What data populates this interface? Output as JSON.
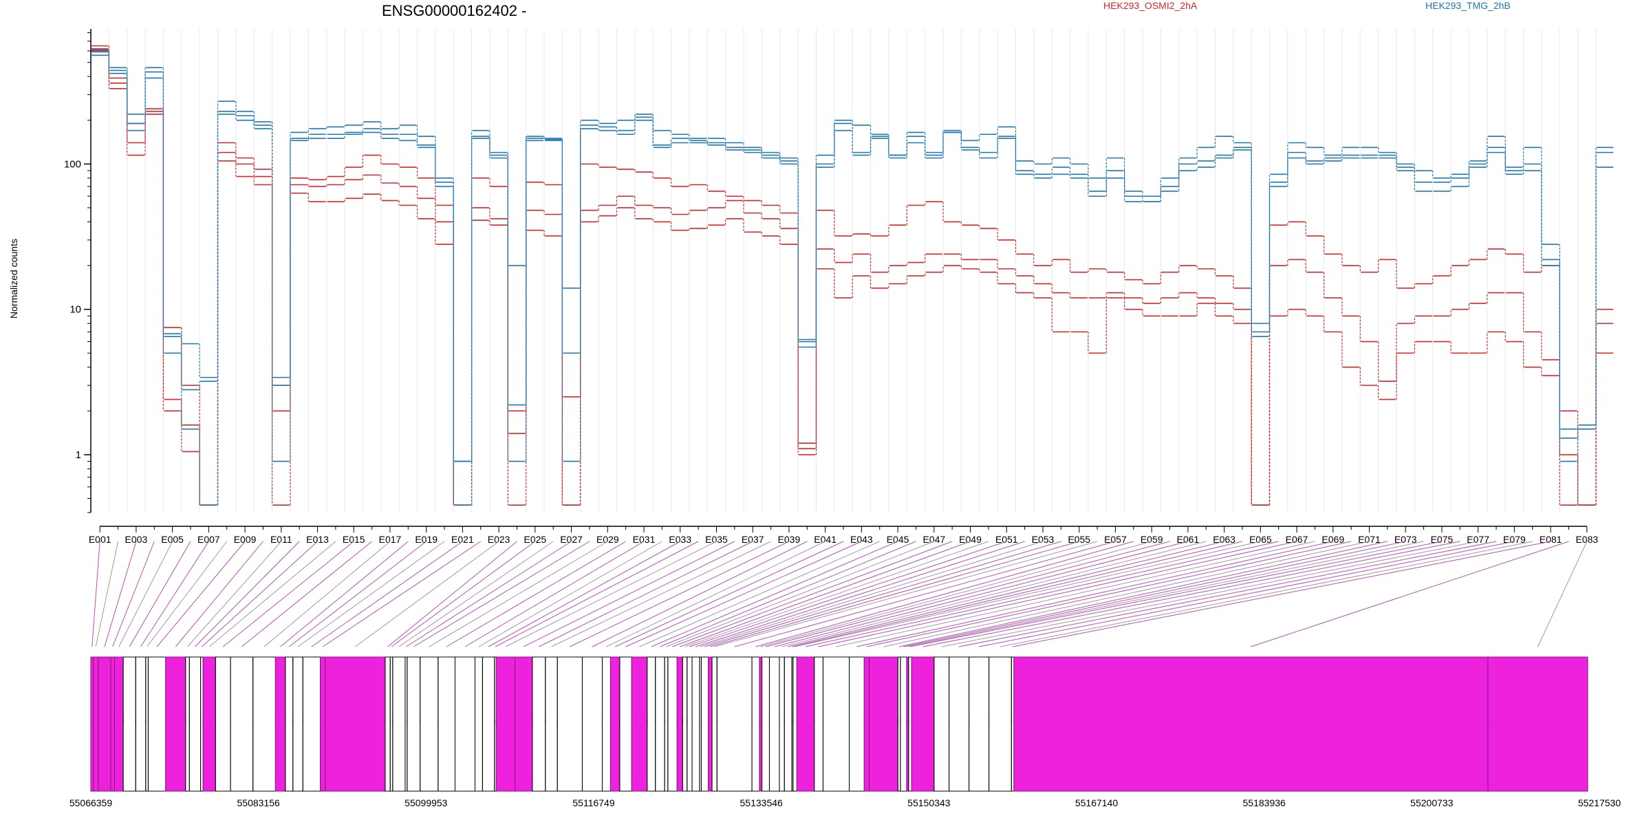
{
  "title": "ENSG00000162402 -",
  "ylabel": "Normalized counts",
  "legend": [
    {
      "name": "HEK293_OSMI2_2hA",
      "color": "#d62728"
    },
    {
      "name": "HEK293_TMG_2hB",
      "color": "#1f77b4"
    }
  ],
  "highlight_color": "#ee22dd",
  "chart_data": {
    "type": "line",
    "yscale": "log",
    "ylim": [
      0.4,
      850
    ],
    "yticks": [
      1,
      10,
      100
    ],
    "ytick_labels": [
      "1",
      "10",
      "100"
    ],
    "x_labels": [
      "E001",
      "E003",
      "E005",
      "E007",
      "E009",
      "E011",
      "E013",
      "E015",
      "E017",
      "E019",
      "E021",
      "E023",
      "E025",
      "E027",
      "E029",
      "E031",
      "E033",
      "E035",
      "E037",
      "E039",
      "E041",
      "E043",
      "E045",
      "E047",
      "E049",
      "E051",
      "E053",
      "E055",
      "E057",
      "E059",
      "E061",
      "E063",
      "E065",
      "E067",
      "E069",
      "E071",
      "E073",
      "E075",
      "E077",
      "E079",
      "E081",
      "E083"
    ],
    "exon_count": 83,
    "series": [
      {
        "group": "red",
        "values": [
          650,
          330,
          115,
          230,
          2.0,
          1.05,
          0.45,
          105,
          82,
          72,
          0.45,
          63,
          55,
          55,
          58,
          62,
          56,
          52,
          42,
          28,
          0.45,
          41,
          38,
          0.45,
          35,
          32,
          0.45,
          40,
          44,
          50,
          42,
          40,
          35,
          36,
          38,
          42,
          34,
          32,
          28,
          1.0,
          19,
          12,
          17,
          14,
          15,
          17,
          18,
          20,
          19,
          18,
          15,
          13,
          12,
          7,
          7,
          5,
          12,
          10,
          9,
          9,
          9,
          11,
          9,
          8,
          0.45,
          9,
          10,
          9,
          7,
          4,
          3,
          2.4,
          5,
          6,
          6,
          5,
          5,
          7,
          6,
          4,
          3.5,
          0.45,
          0.45,
          5
        ]
      },
      {
        "group": "red",
        "values": [
          620,
          360,
          140,
          220,
          2.4,
          1.6,
          0.45,
          120,
          100,
          82,
          2.0,
          72,
          70,
          72,
          78,
          84,
          74,
          70,
          58,
          40,
          0.45,
          50,
          42,
          1.4,
          48,
          45,
          0.45,
          48,
          52,
          60,
          52,
          50,
          45,
          48,
          50,
          56,
          46,
          42,
          36,
          1.1,
          26,
          21,
          24,
          18,
          20,
          21,
          24,
          24,
          22,
          22,
          19,
          17,
          15,
          13,
          12,
          12,
          13,
          12,
          11,
          12,
          13,
          12,
          11,
          10,
          0.45,
          20,
          22,
          18,
          12,
          9,
          6,
          3.2,
          8,
          9,
          9,
          10,
          11,
          13,
          13,
          7,
          4.5,
          1.0,
          0.45,
          8
        ]
      },
      {
        "group": "red",
        "values": [
          600,
          390,
          190,
          240,
          7.5,
          3.0,
          0.45,
          140,
          110,
          92,
          3.0,
          80,
          78,
          82,
          95,
          115,
          100,
          95,
          80,
          52,
          0.45,
          80,
          70,
          2.0,
          75,
          72,
          2.5,
          100,
          95,
          92,
          88,
          80,
          70,
          72,
          65,
          60,
          56,
          52,
          46,
          1.2,
          48,
          32,
          33,
          32,
          38,
          52,
          55,
          40,
          38,
          36,
          30,
          24,
          20,
          22,
          18,
          19,
          18,
          16,
          15,
          18,
          20,
          19,
          17,
          14,
          0.45,
          38,
          40,
          32,
          24,
          20,
          18,
          22,
          14,
          15,
          17,
          20,
          22,
          26,
          24,
          18,
          20,
          2.0,
          0.45,
          10
        ]
      },
      {
        "group": "blue",
        "values": [
          560,
          420,
          170,
          390,
          5.0,
          1.5,
          0.45,
          220,
          200,
          175,
          0.9,
          145,
          150,
          150,
          160,
          165,
          150,
          145,
          130,
          70,
          0.45,
          150,
          110,
          0.9,
          145,
          145,
          0.9,
          175,
          170,
          160,
          200,
          130,
          140,
          140,
          135,
          125,
          120,
          110,
          100,
          5.5,
          95,
          170,
          115,
          150,
          110,
          140,
          110,
          165,
          125,
          110,
          150,
          85,
          80,
          85,
          80,
          60,
          80,
          55,
          55,
          65,
          90,
          95,
          110,
          125,
          8.0,
          70,
          110,
          100,
          105,
          110,
          110,
          110,
          90,
          65,
          65,
          70,
          95,
          120,
          85,
          90,
          20,
          0.9,
          1.5,
          95
        ]
      },
      {
        "group": "blue",
        "values": [
          590,
          440,
          190,
          430,
          6.5,
          2.8,
          3.2,
          230,
          215,
          185,
          3.0,
          150,
          160,
          160,
          165,
          175,
          160,
          160,
          135,
          75,
          0.9,
          155,
          115,
          2.2,
          150,
          148,
          5.0,
          185,
          180,
          170,
          210,
          135,
          150,
          145,
          140,
          130,
          125,
          115,
          105,
          6.0,
          100,
          190,
          120,
          155,
          115,
          155,
          115,
          165,
          130,
          120,
          155,
          90,
          85,
          95,
          85,
          65,
          90,
          60,
          55,
          70,
          100,
          105,
          115,
          130,
          6.5,
          75,
          120,
          105,
          110,
          115,
          115,
          115,
          95,
          75,
          75,
          80,
          100,
          130,
          90,
          100,
          22,
          1.3,
          1.5,
          120
        ]
      },
      {
        "group": "blue",
        "values": [
          610,
          460,
          220,
          460,
          6.8,
          5.8,
          3.4,
          270,
          230,
          195,
          3.4,
          165,
          175,
          180,
          185,
          195,
          175,
          185,
          155,
          80,
          0.9,
          170,
          120,
          20,
          155,
          150,
          14,
          200,
          190,
          200,
          220,
          170,
          160,
          150,
          150,
          140,
          130,
          120,
          110,
          6.2,
          115,
          200,
          185,
          160,
          115,
          165,
          120,
          170,
          145,
          160,
          180,
          105,
          100,
          110,
          100,
          80,
          110,
          65,
          60,
          80,
          110,
          130,
          155,
          140,
          7.0,
          85,
          140,
          130,
          115,
          130,
          130,
          120,
          100,
          90,
          80,
          85,
          105,
          155,
          95,
          130,
          28,
          1.5,
          1.6,
          130
        ]
      }
    ],
    "genome_coords": [
      "55066359",
      "55083156",
      "55099953",
      "55116749",
      "55133546",
      "55150343",
      "55167140",
      "55183936",
      "55200733",
      "55217530"
    ],
    "genome_range": [
      55066359,
      55217530
    ]
  }
}
